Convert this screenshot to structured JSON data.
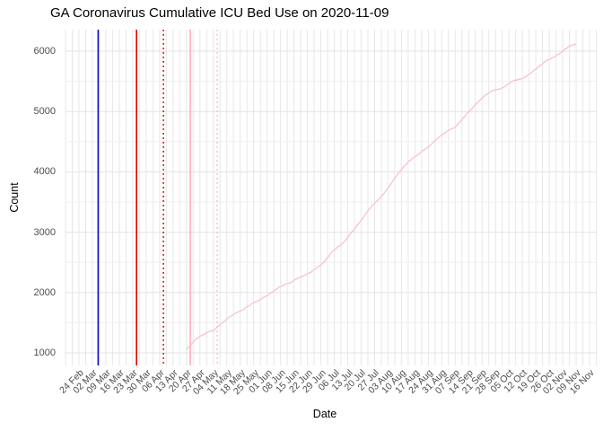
{
  "chart_data": {
    "type": "line",
    "title": "GA Coronavirus Cumulative ICU Bed Use on 2020-11-09",
    "xlabel": "Date",
    "ylabel": "Count",
    "x_axis_start_date": "2020-02-24",
    "x_tick_interval_days": 7,
    "x_ticks": [
      "24 Feb",
      "02 Mar",
      "09 Mar",
      "16 Mar",
      "23 Mar",
      "30 Mar",
      "06 Apr",
      "13 Apr",
      "20 Apr",
      "27 Apr",
      "04 May",
      "11 May",
      "18 May",
      "25 May",
      "01 Jun",
      "08 Jun",
      "15 Jun",
      "22 Jun",
      "29 Jun",
      "06 Jul",
      "13 Jul",
      "20 Jul",
      "27 Jul",
      "03 Aug",
      "10 Aug",
      "17 Aug",
      "24 Aug",
      "31 Aug",
      "07 Sep",
      "14 Sep",
      "21 Sep",
      "28 Sep",
      "05 Oct",
      "12 Oct",
      "19 Oct",
      "26 Oct",
      "02 Nov",
      "09 Nov",
      "16 Nov"
    ],
    "y_ticks": [
      1000,
      2000,
      3000,
      4000,
      5000,
      6000
    ],
    "y_minor_ticks": [
      1500,
      2500,
      3500,
      4500,
      5500
    ],
    "ylim_panel": [
      790,
      6360
    ],
    "grid": {
      "vertical_every_days": 3.5,
      "major_color": "#e3e3e3",
      "minor_color": "#efefef",
      "vertical_color": "#e7e7e7"
    },
    "legend": "none",
    "colors": {
      "series_line": "#f8c2cd",
      "background": "#ffffff",
      "axis_text": "#4d4d4d",
      "title_text": "#000000"
    },
    "vlines": [
      {
        "date": "2020-03-05",
        "color": "#0a0ad0",
        "style": "solid"
      },
      {
        "date": "2020-03-25",
        "color": "#dd0000",
        "style": "solid"
      },
      {
        "date": "2020-04-08",
        "color": "#dd0000",
        "style": "dotted"
      },
      {
        "date": "2020-04-22",
        "color": "#ffadbf",
        "style": "solid"
      },
      {
        "date": "2020-05-06",
        "color": "#ffb9c6",
        "style": "dotted"
      }
    ],
    "series": [
      {
        "name": "Cumulative ICU Bed Use",
        "color": "#f8c2cd",
        "points": [
          [
            "2020-04-20",
            1055
          ],
          [
            "2020-04-21",
            1090
          ],
          [
            "2020-04-23",
            1160
          ],
          [
            "2020-04-25",
            1230
          ],
          [
            "2020-04-28",
            1290
          ],
          [
            "2020-05-01",
            1345
          ],
          [
            "2020-05-04",
            1365
          ],
          [
            "2020-05-07",
            1460
          ],
          [
            "2020-05-10",
            1530
          ],
          [
            "2020-05-13",
            1610
          ],
          [
            "2020-05-16",
            1660
          ],
          [
            "2020-05-19",
            1710
          ],
          [
            "2020-05-22",
            1775
          ],
          [
            "2020-05-26",
            1840
          ],
          [
            "2020-05-29",
            1895
          ],
          [
            "2020-06-01",
            1950
          ],
          [
            "2020-06-04",
            2015
          ],
          [
            "2020-06-07",
            2085
          ],
          [
            "2020-06-10",
            2125
          ],
          [
            "2020-06-13",
            2165
          ],
          [
            "2020-06-16",
            2215
          ],
          [
            "2020-06-19",
            2260
          ],
          [
            "2020-06-23",
            2320
          ],
          [
            "2020-06-26",
            2385
          ],
          [
            "2020-06-29",
            2460
          ],
          [
            "2020-07-02",
            2560
          ],
          [
            "2020-07-05",
            2680
          ],
          [
            "2020-07-08",
            2755
          ],
          [
            "2020-07-11",
            2830
          ],
          [
            "2020-07-14",
            2960
          ],
          [
            "2020-07-17",
            3070
          ],
          [
            "2020-07-20",
            3200
          ],
          [
            "2020-07-24",
            3375
          ],
          [
            "2020-07-27",
            3480
          ],
          [
            "2020-07-30",
            3575
          ],
          [
            "2020-08-02",
            3685
          ],
          [
            "2020-08-05",
            3830
          ],
          [
            "2020-08-08",
            3960
          ],
          [
            "2020-08-11",
            4080
          ],
          [
            "2020-08-14",
            4180
          ],
          [
            "2020-08-17",
            4250
          ],
          [
            "2020-08-20",
            4320
          ],
          [
            "2020-08-23",
            4390
          ],
          [
            "2020-08-26",
            4470
          ],
          [
            "2020-08-29",
            4555
          ],
          [
            "2020-09-01",
            4640
          ],
          [
            "2020-09-04",
            4690
          ],
          [
            "2020-09-07",
            4740
          ],
          [
            "2020-09-10",
            4850
          ],
          [
            "2020-09-13",
            4960
          ],
          [
            "2020-09-16",
            5060
          ],
          [
            "2020-09-19",
            5160
          ],
          [
            "2020-09-22",
            5245
          ],
          [
            "2020-09-25",
            5330
          ],
          [
            "2020-09-28",
            5360
          ],
          [
            "2020-10-01",
            5385
          ],
          [
            "2020-10-04",
            5440
          ],
          [
            "2020-10-07",
            5505
          ],
          [
            "2020-10-10",
            5530
          ],
          [
            "2020-10-13",
            5560
          ],
          [
            "2020-10-16",
            5630
          ],
          [
            "2020-10-19",
            5705
          ],
          [
            "2020-10-22",
            5780
          ],
          [
            "2020-10-25",
            5855
          ],
          [
            "2020-10-28",
            5900
          ],
          [
            "2020-10-31",
            5950
          ],
          [
            "2020-11-03",
            6030
          ],
          [
            "2020-11-06",
            6090
          ],
          [
            "2020-11-09",
            6120
          ]
        ]
      }
    ]
  }
}
